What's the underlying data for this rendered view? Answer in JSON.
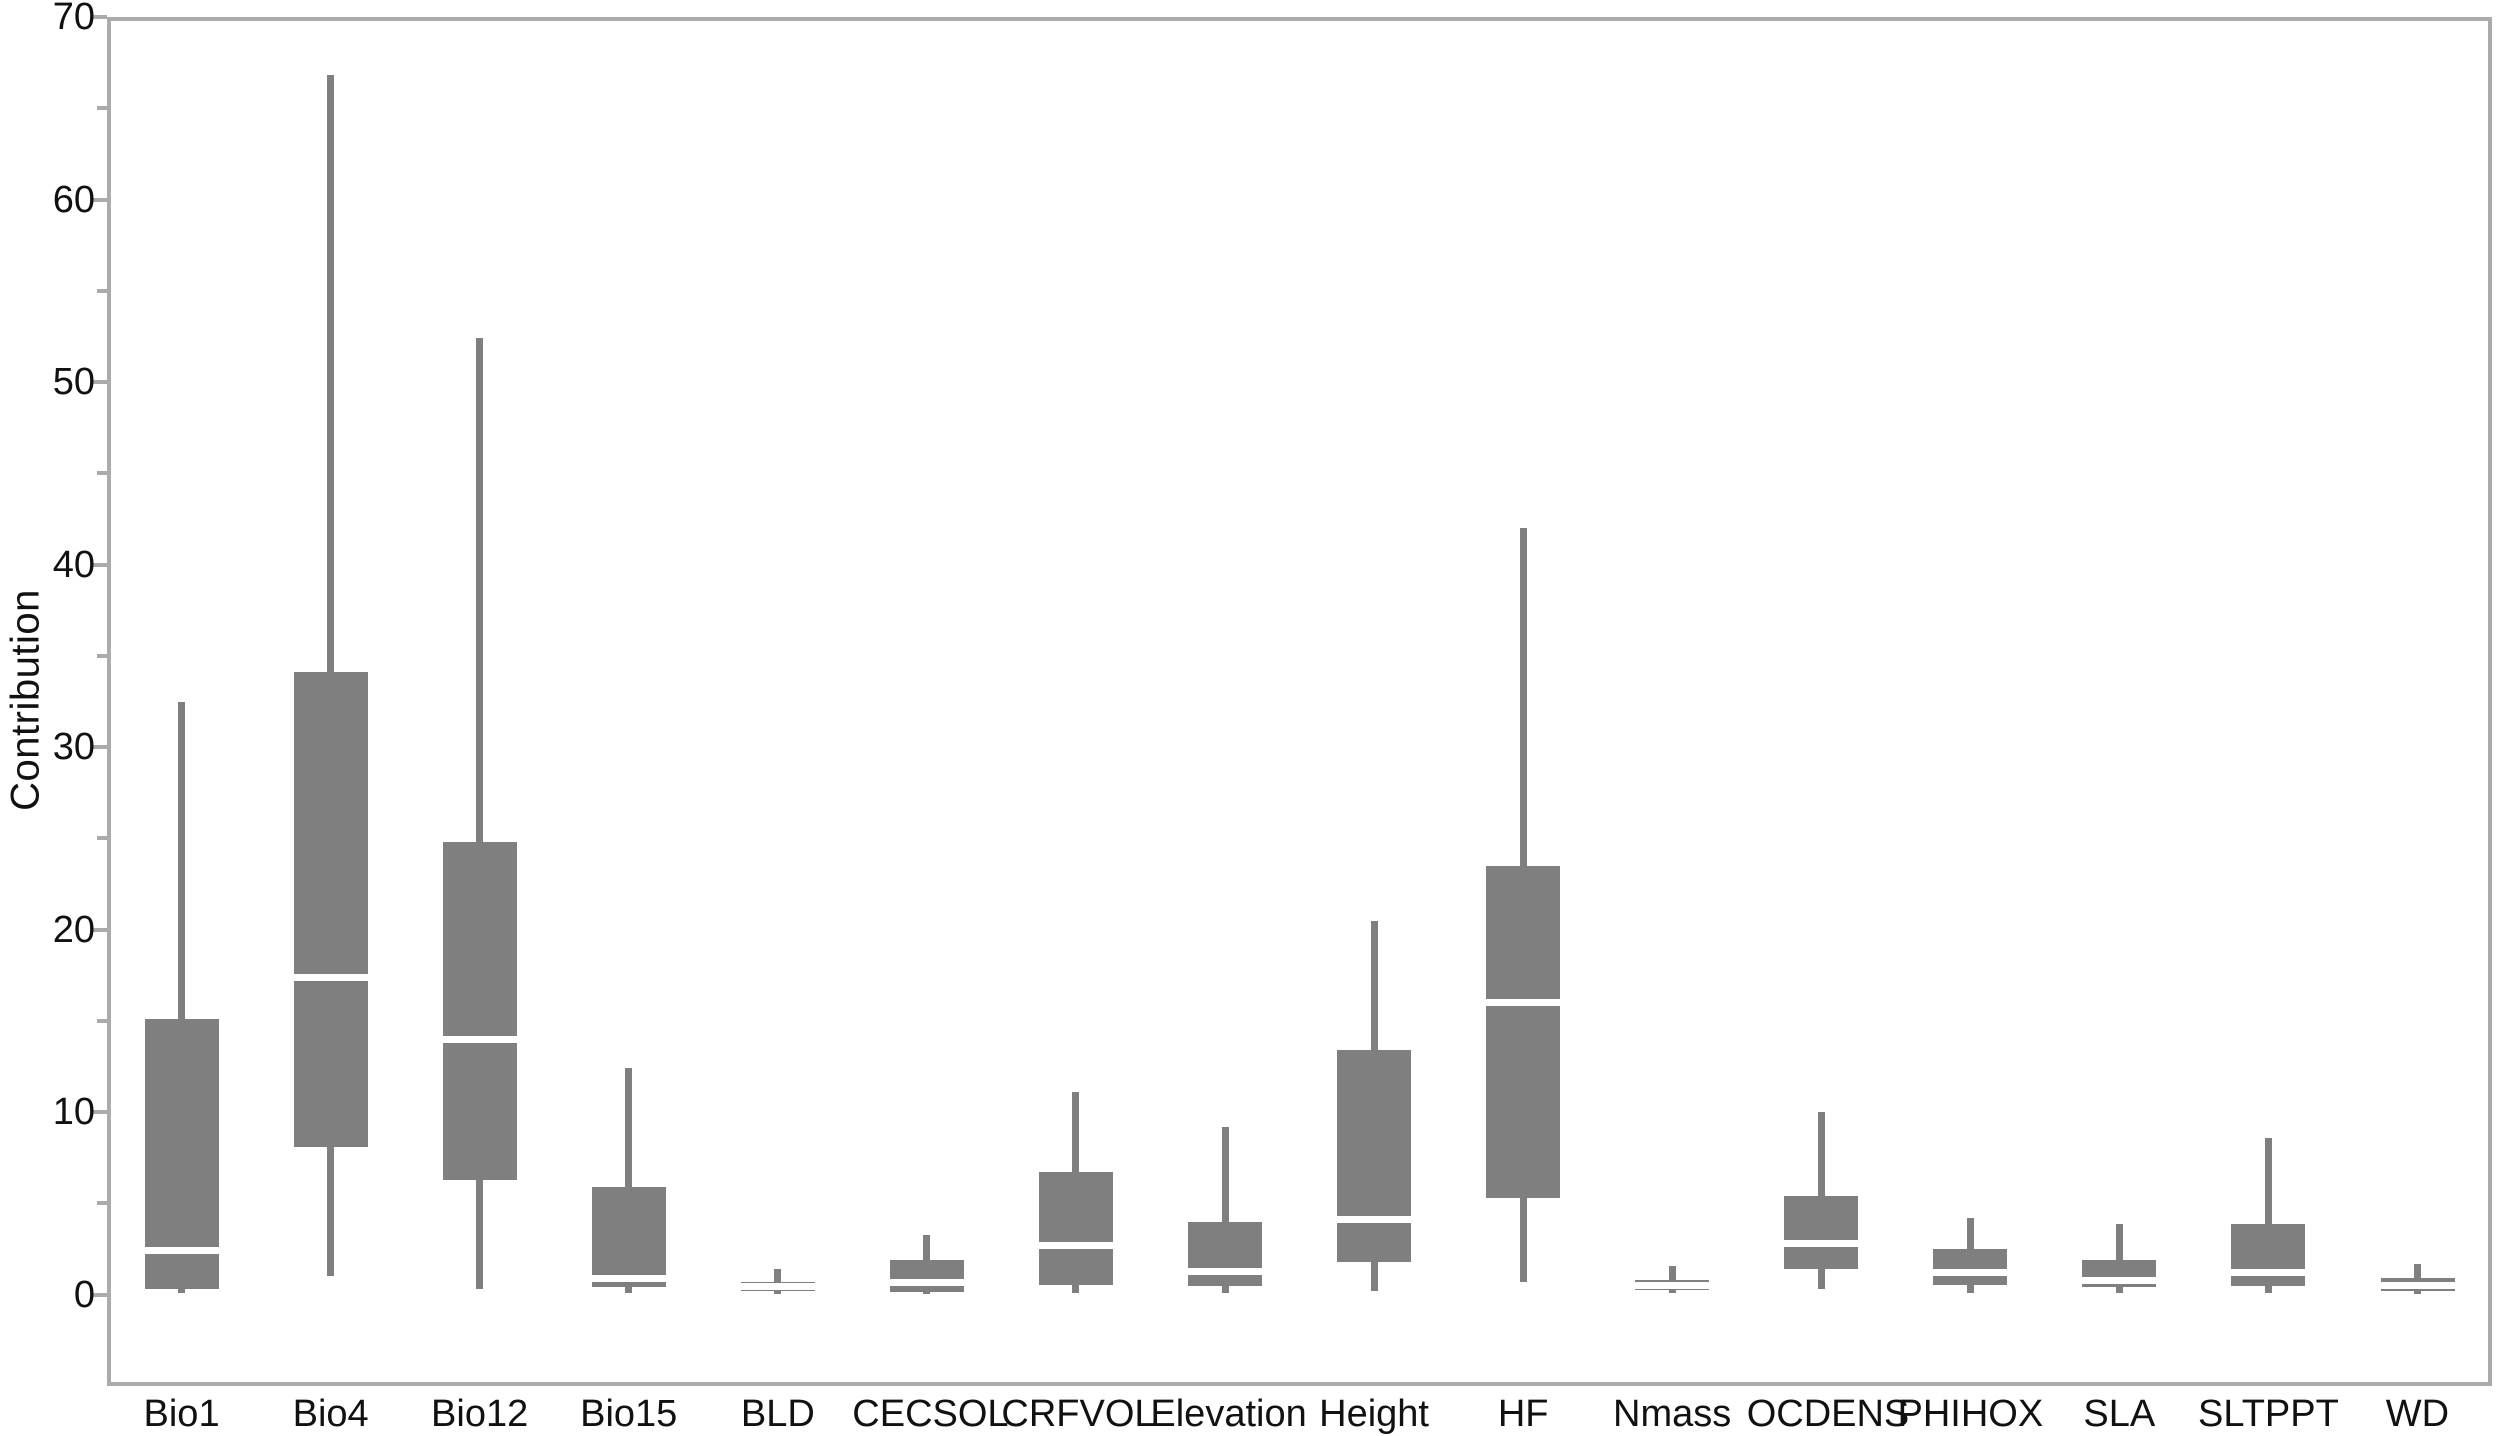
{
  "chart_data": {
    "type": "boxplot",
    "title": "",
    "xlabel": "",
    "ylabel": "Contribution",
    "ylim": [
      -5,
      70
    ],
    "yticks_major": [
      0,
      10,
      20,
      30,
      40,
      50,
      60,
      70
    ],
    "yticks_minor": [
      5,
      15,
      25,
      35,
      45,
      55,
      65
    ],
    "grid": false,
    "legend": "none",
    "box_color": "#7f7f7f",
    "median_color": "#ffffff",
    "frame_color": "#ababab",
    "text_color": "#111111",
    "categories": [
      "Bio1",
      "Bio4",
      "Bio12",
      "Bio15",
      "BLD",
      "CECSOL",
      "CRFVOL",
      "Elevation",
      "Height",
      "HF",
      "Nmass",
      "OCDENS",
      "PHIHOX",
      "SLA",
      "SLTPPT",
      "WD"
    ],
    "series": [
      {
        "name": "Bio1",
        "whisker_low": 0.1,
        "q1": 0.3,
        "median": 2.4,
        "q3": 15.1,
        "whisker_high": 32.5
      },
      {
        "name": "Bio4",
        "whisker_low": 1.0,
        "q1": 8.1,
        "median": 17.4,
        "q3": 34.1,
        "whisker_high": 66.8
      },
      {
        "name": "Bio12",
        "whisker_low": 0.3,
        "q1": 6.3,
        "median": 14.0,
        "q3": 24.8,
        "whisker_high": 52.4
      },
      {
        "name": "Bio15",
        "whisker_low": 0.1,
        "q1": 0.4,
        "median": 0.9,
        "q3": 5.9,
        "whisker_high": 12.4
      },
      {
        "name": "BLD",
        "whisker_low": 0.05,
        "q1": 0.2,
        "median": 0.45,
        "q3": 0.7,
        "whisker_high": 1.4
      },
      {
        "name": "CECSOL",
        "whisker_low": 0.05,
        "q1": 0.15,
        "median": 0.65,
        "q3": 1.9,
        "whisker_high": 3.3
      },
      {
        "name": "CRFVOL",
        "whisker_low": 0.1,
        "q1": 0.55,
        "median": 2.7,
        "q3": 6.7,
        "whisker_high": 11.1
      },
      {
        "name": "Elevation",
        "whisker_low": 0.1,
        "q1": 0.5,
        "median": 1.3,
        "q3": 4.0,
        "whisker_high": 9.2
      },
      {
        "name": "Height",
        "whisker_low": 0.2,
        "q1": 1.8,
        "median": 4.1,
        "q3": 13.4,
        "whisker_high": 20.5
      },
      {
        "name": "HF",
        "whisker_low": 0.7,
        "q1": 5.3,
        "median": 16.0,
        "q3": 23.5,
        "whisker_high": 42.0
      },
      {
        "name": "Nmass",
        "whisker_low": 0.1,
        "q1": 0.25,
        "median": 0.5,
        "q3": 0.8,
        "whisker_high": 1.6
      },
      {
        "name": "OCDENS",
        "whisker_low": 0.3,
        "q1": 1.4,
        "median": 2.8,
        "q3": 5.4,
        "whisker_high": 10.0
      },
      {
        "name": "PHIHOX",
        "whisker_low": 0.1,
        "q1": 0.55,
        "median": 1.2,
        "q3": 2.5,
        "whisker_high": 4.2
      },
      {
        "name": "SLA",
        "whisker_low": 0.1,
        "q1": 0.4,
        "median": 0.8,
        "q3": 1.9,
        "whisker_high": 3.9
      },
      {
        "name": "SLTPPT",
        "whisker_low": 0.1,
        "q1": 0.5,
        "median": 1.2,
        "q3": 3.9,
        "whisker_high": 8.6
      },
      {
        "name": "WD",
        "whisker_low": 0.05,
        "q1": 0.2,
        "median": 0.5,
        "q3": 0.9,
        "whisker_high": 1.7
      }
    ]
  }
}
